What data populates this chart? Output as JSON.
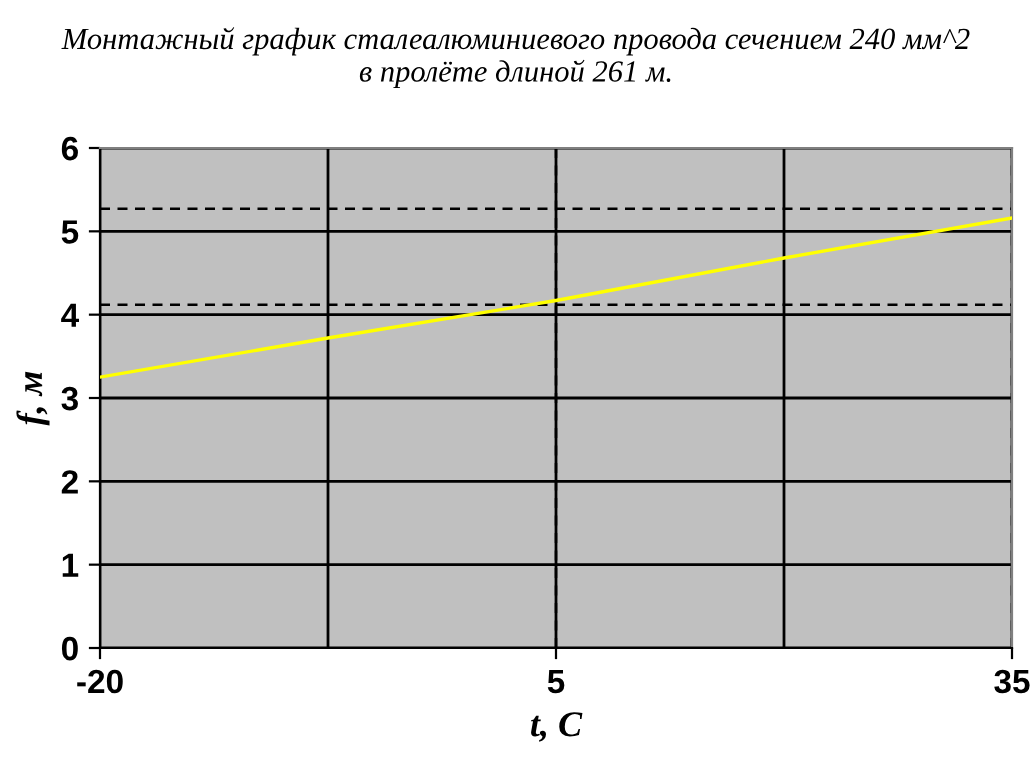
{
  "chart_data": {
    "type": "line",
    "title": "Монтажный график сталеалюминиевого провода сечением 240 мм^2\nв пролёте длиной 261 м.",
    "xlabel": "t, C",
    "ylabel": "f, м",
    "categories": [
      "-20",
      null,
      "5",
      null,
      "35"
    ],
    "series": [
      {
        "color": "#ffff00",
        "values": [
          3.25,
          3.72,
          4.17,
          4.68,
          5.16
        ]
      }
    ],
    "ylim": [
      0,
      6
    ],
    "yticks": [
      0,
      1,
      2,
      3,
      4,
      5,
      6
    ],
    "grid": true,
    "legend": false,
    "marker": "none",
    "line_style": "solid",
    "ref_lines": [
      {
        "axis": "y",
        "value": 5.27,
        "color": "#000000",
        "line_style": "dashed"
      },
      {
        "axis": "y",
        "value": 4.12,
        "color": "#000000",
        "line_style": "dashed"
      },
      {
        "axis": "x",
        "value": "5",
        "color": "#000000",
        "line_style": "dashed"
      },
      {
        "axis": "x",
        "value": "35",
        "color": "#000000",
        "line_style": "dashed"
      }
    ]
  }
}
